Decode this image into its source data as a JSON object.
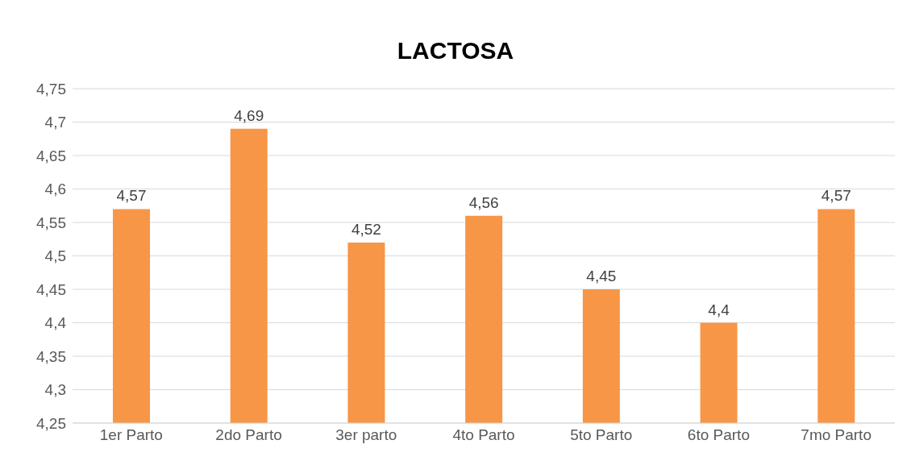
{
  "chart_data": {
    "type": "bar",
    "title": "LACTOSA",
    "categories": [
      "1er Parto",
      "2do Parto",
      "3er parto",
      "4to Parto",
      "5to Parto",
      "6to Parto",
      "7mo Parto"
    ],
    "values": [
      4.57,
      4.69,
      4.52,
      4.56,
      4.45,
      4.4,
      4.57
    ],
    "value_labels": [
      "4,57",
      "4,69",
      "4,52",
      "4,56",
      "4,45",
      "4,4",
      "4,57"
    ],
    "color": "#f79646",
    "ylim": [
      4.25,
      4.75
    ],
    "yticks": [
      {
        "value": 4.25,
        "label": "4,25"
      },
      {
        "value": 4.3,
        "label": "4,3"
      },
      {
        "value": 4.35,
        "label": "4,35"
      },
      {
        "value": 4.4,
        "label": "4,4"
      },
      {
        "value": 4.45,
        "label": "4,45"
      },
      {
        "value": 4.5,
        "label": "4,5"
      },
      {
        "value": 4.55,
        "label": "4,55"
      },
      {
        "value": 4.6,
        "label": "4,6"
      },
      {
        "value": 4.65,
        "label": "4,65"
      },
      {
        "value": 4.7,
        "label": "4,7"
      },
      {
        "value": 4.75,
        "label": "4,75"
      }
    ],
    "grid": "y"
  }
}
